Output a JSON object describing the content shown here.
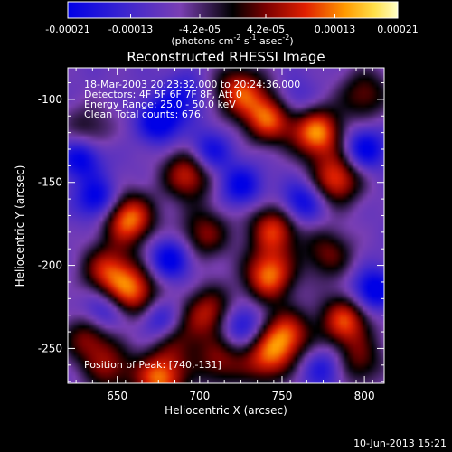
{
  "colorbar": {
    "tick_labels": [
      "-0.00021",
      "-0.00013",
      "-4.2e-05",
      "4.2e-05",
      "0.00013",
      "0.00021"
    ],
    "unit_label_main": "(photons cm",
    "unit_sup1": "-2",
    "unit_mid1": " s",
    "unit_sup2": "-1",
    "unit_mid2": " asec",
    "unit_sup3": "-2",
    "unit_end": ")",
    "range": [
      -0.00021,
      0.00021
    ]
  },
  "chart_data": {
    "type": "heatmap",
    "title": "Reconstructed RHESSI Image",
    "xlabel": "Heliocentric X (arcsec)",
    "ylabel": "Heliocentric Y (arcsec)",
    "xlim": [
      620,
      812
    ],
    "ylim": [
      -271,
      -81
    ],
    "xticks": [
      650,
      700,
      750,
      800
    ],
    "yticks": [
      -100,
      -150,
      -200,
      -250
    ],
    "annotations": [
      "18-Mar-2003 20:23:32.000 to 20:24:36.000",
      "Detectors: 4F 5F 6F 7F 8F, Att 0",
      "Energy Range: 25.0 - 50.0 keV",
      "Clean    Total counts: 676."
    ],
    "peak_label": "Position of Peak: [740,-131]",
    "sources": [
      {
        "x": 657,
        "y": -172,
        "amp": 1.0
      },
      {
        "x": 644,
        "y": -203,
        "amp": 0.75
      },
      {
        "x": 660,
        "y": -216,
        "amp": 0.85
      },
      {
        "x": 632,
        "y": -243,
        "amp": 0.6
      },
      {
        "x": 645,
        "y": -262,
        "amp": 0.55
      },
      {
        "x": 676,
        "y": -268,
        "amp": 0.95
      },
      {
        "x": 693,
        "y": -145,
        "amp": 0.8
      },
      {
        "x": 703,
        "y": -181,
        "amp": 0.6
      },
      {
        "x": 706,
        "y": -228,
        "amp": 0.7
      },
      {
        "x": 712,
        "y": -258,
        "amp": 0.55
      },
      {
        "x": 724,
        "y": -95,
        "amp": 0.8
      },
      {
        "x": 742,
        "y": -111,
        "amp": 0.9
      },
      {
        "x": 745,
        "y": -178,
        "amp": 0.8
      },
      {
        "x": 742,
        "y": -206,
        "amp": 0.95
      },
      {
        "x": 752,
        "y": -242,
        "amp": 0.85
      },
      {
        "x": 740,
        "y": -257,
        "amp": 0.7
      },
      {
        "x": 771,
        "y": -120,
        "amp": 1.0
      },
      {
        "x": 783,
        "y": -148,
        "amp": 0.85
      },
      {
        "x": 800,
        "y": -97,
        "amp": 0.55
      },
      {
        "x": 778,
        "y": -193,
        "amp": 0.55
      },
      {
        "x": 788,
        "y": -233,
        "amp": 0.85
      },
      {
        "x": 797,
        "y": -258,
        "amp": 0.5
      },
      {
        "x": 686,
        "y": -244,
        "amp": 0.45
      },
      {
        "x": 632,
        "y": -118,
        "amp": 0.4
      }
    ],
    "holes": [
      {
        "x": 628,
        "y": -135,
        "amp": 0.9
      },
      {
        "x": 638,
        "y": -160,
        "amp": 0.9
      },
      {
        "x": 676,
        "y": -113,
        "amp": 1.0
      },
      {
        "x": 682,
        "y": -196,
        "amp": 0.9
      },
      {
        "x": 706,
        "y": -132,
        "amp": 0.8
      },
      {
        "x": 676,
        "y": -233,
        "amp": 0.7
      },
      {
        "x": 725,
        "y": -152,
        "amp": 0.8
      },
      {
        "x": 725,
        "y": -236,
        "amp": 0.8
      },
      {
        "x": 762,
        "y": -162,
        "amp": 0.85
      },
      {
        "x": 757,
        "y": -101,
        "amp": 0.5
      },
      {
        "x": 800,
        "y": -130,
        "amp": 0.9
      },
      {
        "x": 805,
        "y": -215,
        "amp": 1.0
      },
      {
        "x": 775,
        "y": -262,
        "amp": 0.6
      },
      {
        "x": 690,
        "y": -98,
        "amp": 0.6
      },
      {
        "x": 641,
        "y": -228,
        "amp": 0.7
      }
    ]
  },
  "footer": {
    "timestamp": "10-Jun-2013 15:21"
  }
}
